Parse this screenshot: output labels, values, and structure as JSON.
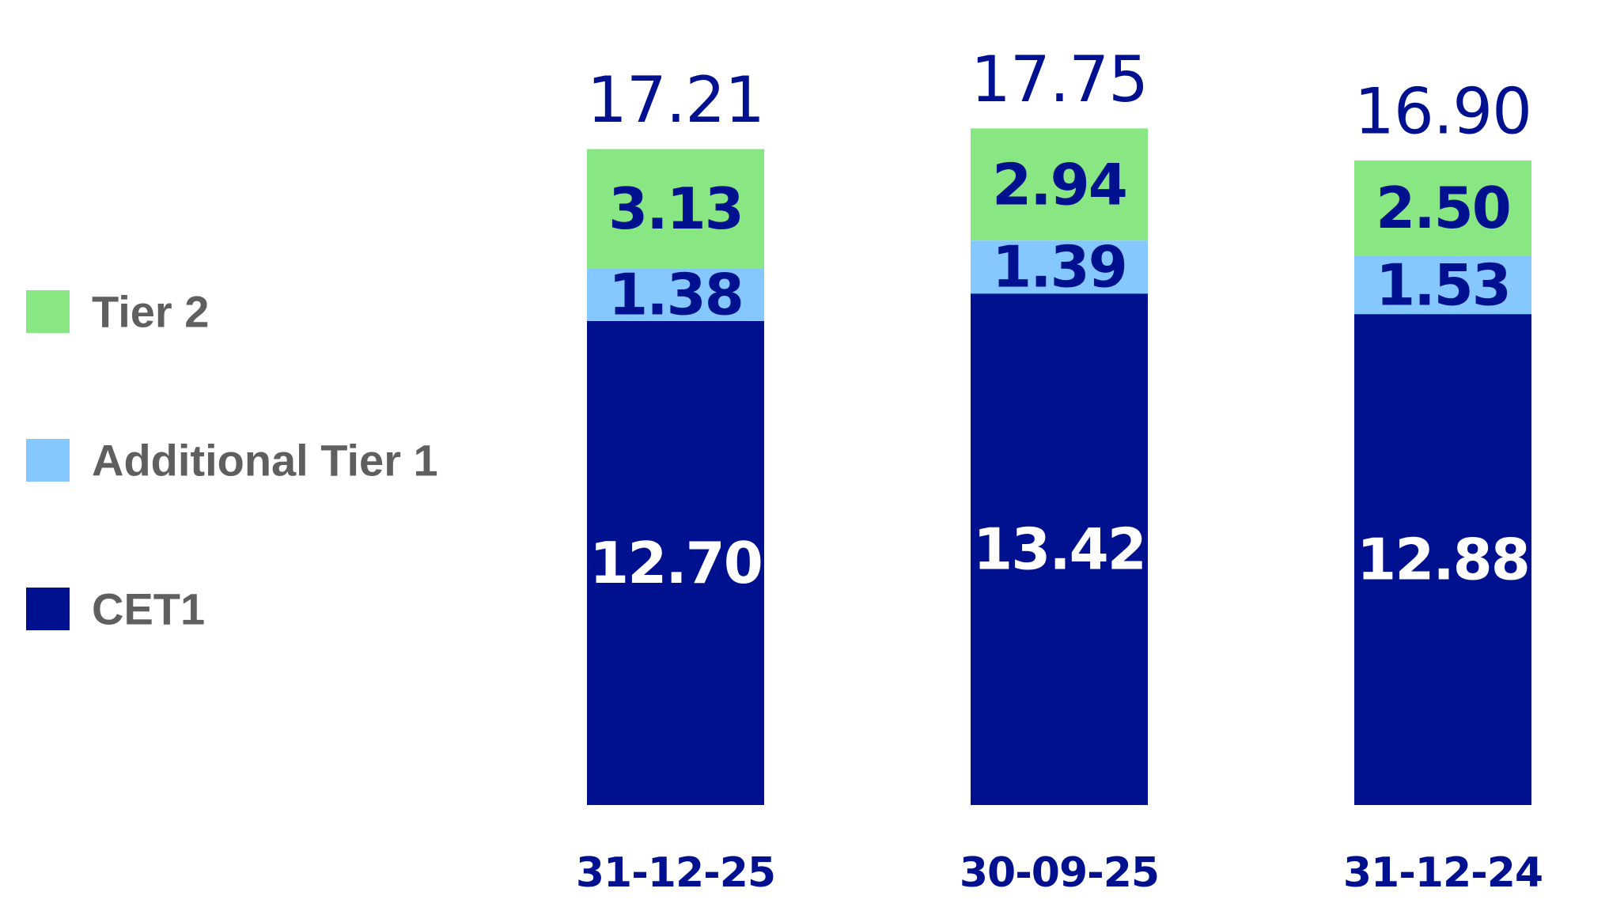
{
  "chart_data": {
    "type": "bar",
    "stacked": true,
    "categories": [
      "31-12-25",
      "30-09-25",
      "31-12-24"
    ],
    "series": [
      {
        "name": "CET1",
        "values": [
          12.7,
          13.42,
          12.88
        ],
        "labels": [
          "12.70",
          "13.42",
          "12.88"
        ],
        "color": "#001190",
        "label_color": "#ffffff"
      },
      {
        "name": "Additional Tier 1",
        "values": [
          1.38,
          1.39,
          1.53
        ],
        "labels": [
          "1.38",
          "1.39",
          "1.53"
        ],
        "color": "#85c8ff",
        "label_color": "#001190"
      },
      {
        "name": "Tier 2",
        "values": [
          3.13,
          2.94,
          2.5
        ],
        "labels": [
          "3.13",
          "2.94",
          "2.50"
        ],
        "color": "#88e783",
        "label_color": "#001190"
      }
    ],
    "totals": [
      "17.21",
      "17.75",
      "16.90"
    ],
    "legend": {
      "placement": "left",
      "order": [
        "Tier 2",
        "Additional Tier 1",
        "CET1"
      ]
    },
    "ylim": [
      0,
      17.75
    ],
    "grid": false,
    "title": "",
    "xlabel": "",
    "ylabel": "",
    "colors": {
      "text_dark": "#001190",
      "legend_text": "#5f5f5f"
    }
  }
}
